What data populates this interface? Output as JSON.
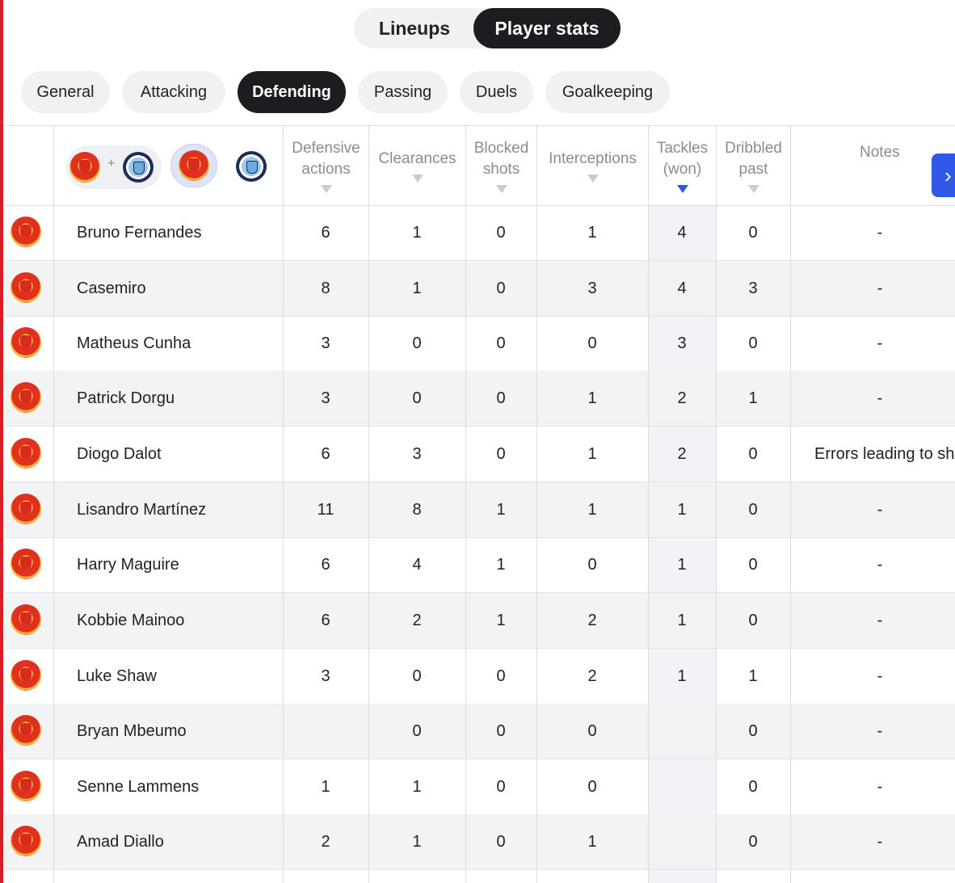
{
  "tabs": {
    "lineups": "Lineups",
    "player_stats": "Player stats"
  },
  "categories": [
    "General",
    "Attacking",
    "Defending",
    "Passing",
    "Duels",
    "Goalkeeping"
  ],
  "active_category": "Defending",
  "filter": {
    "plus": "+"
  },
  "columns": {
    "defensive_actions": [
      "Defensive",
      "actions"
    ],
    "clearances": [
      "Clearances"
    ],
    "blocked_shots": [
      "Blocked",
      "shots"
    ],
    "interceptions": [
      "Interceptions"
    ],
    "tackles_won": [
      "Tackles",
      "(won)"
    ],
    "dribbled_past": [
      "Dribbled",
      "past"
    ],
    "notes": "Notes"
  },
  "sort_column": "tackles_won",
  "next_icon": "›",
  "colors": {
    "accent": "#3057e8",
    "active_bg": "#1c1d21",
    "edge": "#d61f26"
  },
  "rows": [
    {
      "name": "Bruno Fernandes",
      "defensive_actions": "6",
      "clearances": "1",
      "blocked_shots": "0",
      "interceptions": "1",
      "tackles_won": "4",
      "dribbled_past": "0",
      "notes": "-"
    },
    {
      "name": "Casemiro",
      "defensive_actions": "8",
      "clearances": "1",
      "blocked_shots": "0",
      "interceptions": "3",
      "tackles_won": "4",
      "dribbled_past": "3",
      "notes": "-"
    },
    {
      "name": "Matheus Cunha",
      "defensive_actions": "3",
      "clearances": "0",
      "blocked_shots": "0",
      "interceptions": "0",
      "tackles_won": "3",
      "dribbled_past": "0",
      "notes": "-"
    },
    {
      "name": "Patrick Dorgu",
      "defensive_actions": "3",
      "clearances": "0",
      "blocked_shots": "0",
      "interceptions": "1",
      "tackles_won": "2",
      "dribbled_past": "1",
      "notes": "-"
    },
    {
      "name": "Diogo Dalot",
      "defensive_actions": "6",
      "clearances": "3",
      "blocked_shots": "0",
      "interceptions": "1",
      "tackles_won": "2",
      "dribbled_past": "0",
      "notes": "Errors leading to sh"
    },
    {
      "name": "Lisandro Martínez",
      "defensive_actions": "11",
      "clearances": "8",
      "blocked_shots": "1",
      "interceptions": "1",
      "tackles_won": "1",
      "dribbled_past": "0",
      "notes": "-"
    },
    {
      "name": "Harry Maguire",
      "defensive_actions": "6",
      "clearances": "4",
      "blocked_shots": "1",
      "interceptions": "0",
      "tackles_won": "1",
      "dribbled_past": "0",
      "notes": "-"
    },
    {
      "name": "Kobbie Mainoo",
      "defensive_actions": "6",
      "clearances": "2",
      "blocked_shots": "1",
      "interceptions": "2",
      "tackles_won": "1",
      "dribbled_past": "0",
      "notes": "-"
    },
    {
      "name": "Luke Shaw",
      "defensive_actions": "3",
      "clearances": "0",
      "blocked_shots": "0",
      "interceptions": "2",
      "tackles_won": "1",
      "dribbled_past": "1",
      "notes": "-"
    },
    {
      "name": "Bryan Mbeumo",
      "defensive_actions": "",
      "clearances": "0",
      "blocked_shots": "0",
      "interceptions": "0",
      "tackles_won": "",
      "dribbled_past": "0",
      "notes": "-"
    },
    {
      "name": "Senne Lammens",
      "defensive_actions": "1",
      "clearances": "1",
      "blocked_shots": "0",
      "interceptions": "0",
      "tackles_won": "",
      "dribbled_past": "0",
      "notes": "-"
    },
    {
      "name": "Amad Diallo",
      "defensive_actions": "2",
      "clearances": "1",
      "blocked_shots": "0",
      "interceptions": "1",
      "tackles_won": "",
      "dribbled_past": "0",
      "notes": "-"
    }
  ]
}
